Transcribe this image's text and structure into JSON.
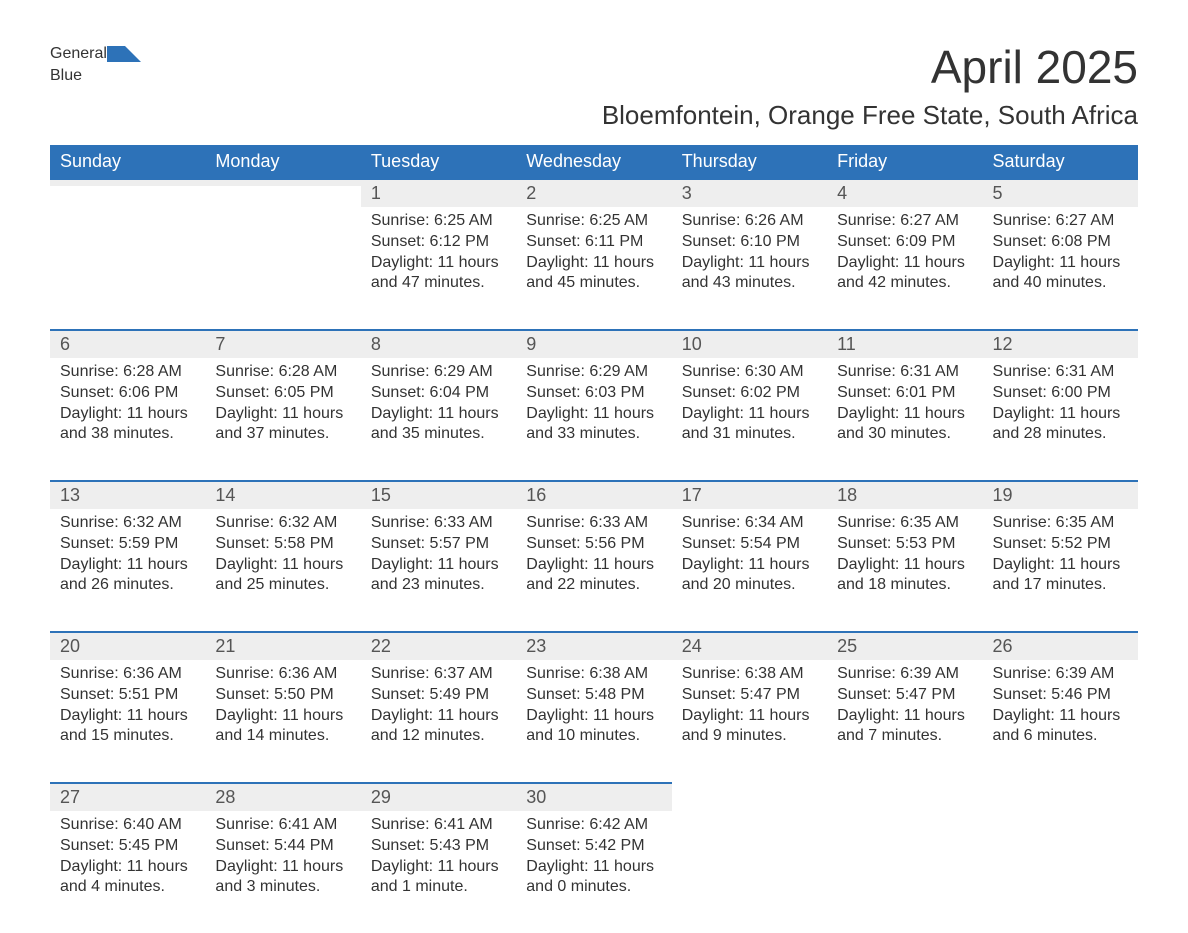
{
  "logo": {
    "text1": "General",
    "text2": "Blue"
  },
  "title": "April 2025",
  "subtitle": "Bloemfontein, Orange Free State, South Africa",
  "colors": {
    "header_bg": "#2d72b8",
    "header_text": "#ffffff",
    "daynum_bg": "#eeeeee",
    "daynum_border": "#2d72b8",
    "text": "#333333",
    "logo_blue": "#2d72b8"
  },
  "weekdays": [
    "Sunday",
    "Monday",
    "Tuesday",
    "Wednesday",
    "Thursday",
    "Friday",
    "Saturday"
  ],
  "weeks": [
    [
      null,
      null,
      {
        "n": "1",
        "sunrise": "Sunrise: 6:25 AM",
        "sunset": "Sunset: 6:12 PM",
        "day1": "Daylight: 11 hours",
        "day2": "and 47 minutes."
      },
      {
        "n": "2",
        "sunrise": "Sunrise: 6:25 AM",
        "sunset": "Sunset: 6:11 PM",
        "day1": "Daylight: 11 hours",
        "day2": "and 45 minutes."
      },
      {
        "n": "3",
        "sunrise": "Sunrise: 6:26 AM",
        "sunset": "Sunset: 6:10 PM",
        "day1": "Daylight: 11 hours",
        "day2": "and 43 minutes."
      },
      {
        "n": "4",
        "sunrise": "Sunrise: 6:27 AM",
        "sunset": "Sunset: 6:09 PM",
        "day1": "Daylight: 11 hours",
        "day2": "and 42 minutes."
      },
      {
        "n": "5",
        "sunrise": "Sunrise: 6:27 AM",
        "sunset": "Sunset: 6:08 PM",
        "day1": "Daylight: 11 hours",
        "day2": "and 40 minutes."
      }
    ],
    [
      {
        "n": "6",
        "sunrise": "Sunrise: 6:28 AM",
        "sunset": "Sunset: 6:06 PM",
        "day1": "Daylight: 11 hours",
        "day2": "and 38 minutes."
      },
      {
        "n": "7",
        "sunrise": "Sunrise: 6:28 AM",
        "sunset": "Sunset: 6:05 PM",
        "day1": "Daylight: 11 hours",
        "day2": "and 37 minutes."
      },
      {
        "n": "8",
        "sunrise": "Sunrise: 6:29 AM",
        "sunset": "Sunset: 6:04 PM",
        "day1": "Daylight: 11 hours",
        "day2": "and 35 minutes."
      },
      {
        "n": "9",
        "sunrise": "Sunrise: 6:29 AM",
        "sunset": "Sunset: 6:03 PM",
        "day1": "Daylight: 11 hours",
        "day2": "and 33 minutes."
      },
      {
        "n": "10",
        "sunrise": "Sunrise: 6:30 AM",
        "sunset": "Sunset: 6:02 PM",
        "day1": "Daylight: 11 hours",
        "day2": "and 31 minutes."
      },
      {
        "n": "11",
        "sunrise": "Sunrise: 6:31 AM",
        "sunset": "Sunset: 6:01 PM",
        "day1": "Daylight: 11 hours",
        "day2": "and 30 minutes."
      },
      {
        "n": "12",
        "sunrise": "Sunrise: 6:31 AM",
        "sunset": "Sunset: 6:00 PM",
        "day1": "Daylight: 11 hours",
        "day2": "and 28 minutes."
      }
    ],
    [
      {
        "n": "13",
        "sunrise": "Sunrise: 6:32 AM",
        "sunset": "Sunset: 5:59 PM",
        "day1": "Daylight: 11 hours",
        "day2": "and 26 minutes."
      },
      {
        "n": "14",
        "sunrise": "Sunrise: 6:32 AM",
        "sunset": "Sunset: 5:58 PM",
        "day1": "Daylight: 11 hours",
        "day2": "and 25 minutes."
      },
      {
        "n": "15",
        "sunrise": "Sunrise: 6:33 AM",
        "sunset": "Sunset: 5:57 PM",
        "day1": "Daylight: 11 hours",
        "day2": "and 23 minutes."
      },
      {
        "n": "16",
        "sunrise": "Sunrise: 6:33 AM",
        "sunset": "Sunset: 5:56 PM",
        "day1": "Daylight: 11 hours",
        "day2": "and 22 minutes."
      },
      {
        "n": "17",
        "sunrise": "Sunrise: 6:34 AM",
        "sunset": "Sunset: 5:54 PM",
        "day1": "Daylight: 11 hours",
        "day2": "and 20 minutes."
      },
      {
        "n": "18",
        "sunrise": "Sunrise: 6:35 AM",
        "sunset": "Sunset: 5:53 PM",
        "day1": "Daylight: 11 hours",
        "day2": "and 18 minutes."
      },
      {
        "n": "19",
        "sunrise": "Sunrise: 6:35 AM",
        "sunset": "Sunset: 5:52 PM",
        "day1": "Daylight: 11 hours",
        "day2": "and 17 minutes."
      }
    ],
    [
      {
        "n": "20",
        "sunrise": "Sunrise: 6:36 AM",
        "sunset": "Sunset: 5:51 PM",
        "day1": "Daylight: 11 hours",
        "day2": "and 15 minutes."
      },
      {
        "n": "21",
        "sunrise": "Sunrise: 6:36 AM",
        "sunset": "Sunset: 5:50 PM",
        "day1": "Daylight: 11 hours",
        "day2": "and 14 minutes."
      },
      {
        "n": "22",
        "sunrise": "Sunrise: 6:37 AM",
        "sunset": "Sunset: 5:49 PM",
        "day1": "Daylight: 11 hours",
        "day2": "and 12 minutes."
      },
      {
        "n": "23",
        "sunrise": "Sunrise: 6:38 AM",
        "sunset": "Sunset: 5:48 PM",
        "day1": "Daylight: 11 hours",
        "day2": "and 10 minutes."
      },
      {
        "n": "24",
        "sunrise": "Sunrise: 6:38 AM",
        "sunset": "Sunset: 5:47 PM",
        "day1": "Daylight: 11 hours",
        "day2": "and 9 minutes."
      },
      {
        "n": "25",
        "sunrise": "Sunrise: 6:39 AM",
        "sunset": "Sunset: 5:47 PM",
        "day1": "Daylight: 11 hours",
        "day2": "and 7 minutes."
      },
      {
        "n": "26",
        "sunrise": "Sunrise: 6:39 AM",
        "sunset": "Sunset: 5:46 PM",
        "day1": "Daylight: 11 hours",
        "day2": "and 6 minutes."
      }
    ],
    [
      {
        "n": "27",
        "sunrise": "Sunrise: 6:40 AM",
        "sunset": "Sunset: 5:45 PM",
        "day1": "Daylight: 11 hours",
        "day2": "and 4 minutes."
      },
      {
        "n": "28",
        "sunrise": "Sunrise: 6:41 AM",
        "sunset": "Sunset: 5:44 PM",
        "day1": "Daylight: 11 hours",
        "day2": "and 3 minutes."
      },
      {
        "n": "29",
        "sunrise": "Sunrise: 6:41 AM",
        "sunset": "Sunset: 5:43 PM",
        "day1": "Daylight: 11 hours",
        "day2": "and 1 minute."
      },
      {
        "n": "30",
        "sunrise": "Sunrise: 6:42 AM",
        "sunset": "Sunset: 5:42 PM",
        "day1": "Daylight: 11 hours",
        "day2": "and 0 minutes."
      },
      null,
      null,
      null
    ]
  ]
}
